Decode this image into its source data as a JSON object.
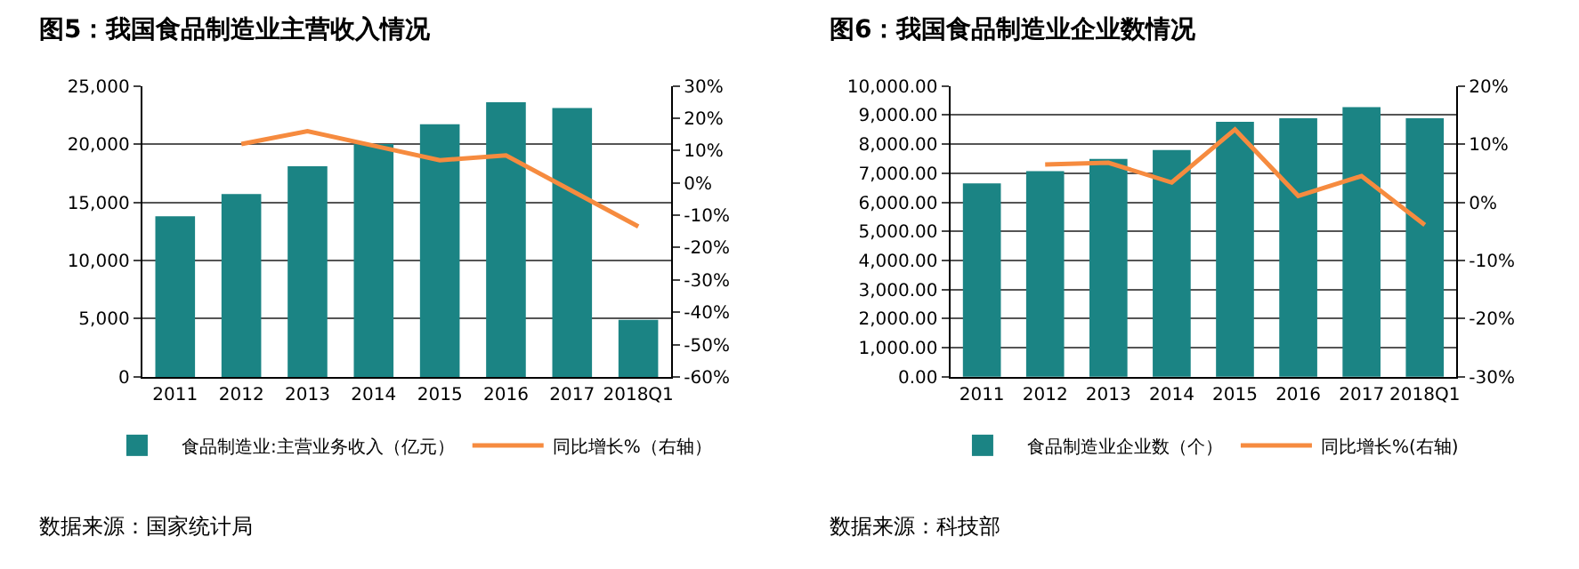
{
  "chart_data": [
    {
      "type": "bar",
      "title": "图5：我国食品制造业主营收入情况",
      "categories": [
        "2011",
        "2012",
        "2013",
        "2014",
        "2015",
        "2016",
        "2017",
        "2018Q1"
      ],
      "series": [
        {
          "name": "食品制造业:主营业务收入（亿元）",
          "color": "#1b8484",
          "values": [
            13800,
            15700,
            18100,
            20000,
            21700,
            23600,
            23100,
            4900
          ]
        },
        {
          "name": "同比增长%（右轴）",
          "type": "line",
          "axis": "y2",
          "color": "#f68b3f",
          "values": [
            null,
            12,
            16,
            11.5,
            7,
            8.5,
            -2.5,
            -13.5
          ]
        }
      ],
      "ylim": [
        0,
        25000
      ],
      "yticks": [
        {
          "value": 0,
          "label": "0"
        },
        {
          "value": 5000,
          "label": "5,000"
        },
        {
          "value": 10000,
          "label": "10,000"
        },
        {
          "value": 15000,
          "label": "15,000"
        },
        {
          "value": 20000,
          "label": "20,000"
        },
        {
          "value": 25000,
          "label": "25,000"
        }
      ],
      "y2lim": [
        -60,
        30
      ],
      "y2ticks": [
        {
          "value": -60,
          "label": "-60%"
        },
        {
          "value": -50,
          "label": "-50%"
        },
        {
          "value": -40,
          "label": "-40%"
        },
        {
          "value": -30,
          "label": "-30%"
        },
        {
          "value": -20,
          "label": "-20%"
        },
        {
          "value": -10,
          "label": "-10%"
        },
        {
          "value": 0,
          "label": "0%"
        },
        {
          "value": 10,
          "label": "10%"
        },
        {
          "value": 20,
          "label": "20%"
        },
        {
          "value": 30,
          "label": "30%"
        }
      ],
      "grid": "y",
      "legend": "bottom",
      "line_style": "solid",
      "annotations": [
        "数据来源：国家统计局"
      ]
    },
    {
      "type": "bar",
      "title": "图6：我国食品制造业企业数情况",
      "categories": [
        "2011",
        "2012",
        "2013",
        "2014",
        "2015",
        "2016",
        "2017",
        "2018Q1"
      ],
      "series": [
        {
          "name": "食品制造业企业数（个）",
          "color": "#1b8484",
          "values": [
            6650,
            7070,
            7490,
            7800,
            8770,
            8890,
            9270,
            8890
          ]
        },
        {
          "name": "同比增长%(右轴)",
          "type": "line",
          "axis": "y2",
          "color": "#f68b3f",
          "values": [
            null,
            6.5,
            6.8,
            3.4,
            12.5,
            1.1,
            4.5,
            -3.9
          ]
        }
      ],
      "ylim": [
        0,
        10000
      ],
      "yticks": [
        {
          "value": 0,
          "label": "0.00"
        },
        {
          "value": 1000,
          "label": "1,000.00"
        },
        {
          "value": 2000,
          "label": "2,000.00"
        },
        {
          "value": 3000,
          "label": "3,000.00"
        },
        {
          "value": 4000,
          "label": "4,000.00"
        },
        {
          "value": 5000,
          "label": "5,000.00"
        },
        {
          "value": 6000,
          "label": "6,000.00"
        },
        {
          "value": 7000,
          "label": "7,000.00"
        },
        {
          "value": 8000,
          "label": "8,000.00"
        },
        {
          "value": 9000,
          "label": "9,000.00"
        },
        {
          "value": 10000,
          "label": "10,000.00"
        }
      ],
      "y2lim": [
        -30,
        20
      ],
      "y2ticks": [
        {
          "value": -30,
          "label": "-30%"
        },
        {
          "value": -20,
          "label": "-20%"
        },
        {
          "value": -10,
          "label": "-10%"
        },
        {
          "value": 0,
          "label": "0%"
        },
        {
          "value": 10,
          "label": "10%"
        },
        {
          "value": 20,
          "label": "20%"
        }
      ],
      "grid": "y",
      "legend": "bottom",
      "line_style": "solid",
      "annotations": [
        "数据来源：科技部"
      ]
    }
  ]
}
